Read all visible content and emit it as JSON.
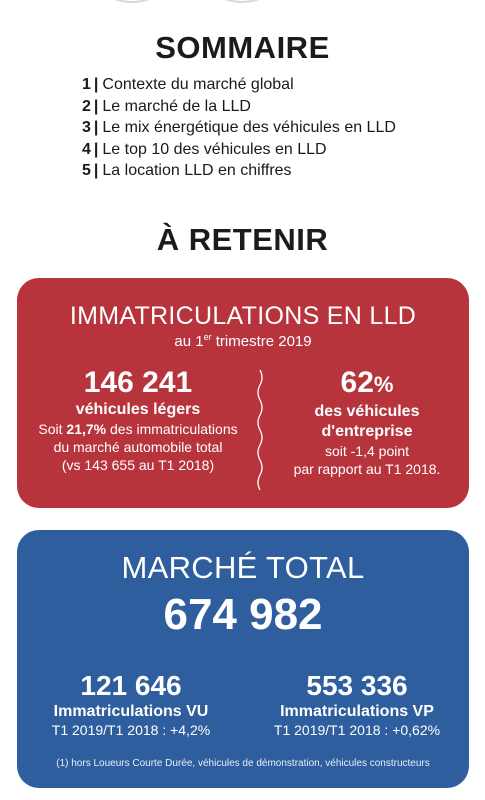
{
  "sommaire": {
    "title": "SOMMAIRE",
    "items": [
      {
        "num": "1",
        "label": "Contexte du marché global"
      },
      {
        "num": "2",
        "label": "Le marché de la LLD"
      },
      {
        "num": "3",
        "label": "Le mix énergétique des véhicules en LLD"
      },
      {
        "num": "4",
        "label": "Le top 10 des véhicules en LLD"
      },
      {
        "num": "5",
        "label": "La location LLD en chiffres"
      }
    ],
    "separator": "|"
  },
  "retenir": {
    "title": "À RETENIR"
  },
  "lld": {
    "title": "IMMATRICULATIONS EN LLD",
    "subtitle_prefix": "au 1",
    "subtitle_sup": "er",
    "subtitle_suffix": " trimestre 2019",
    "left": {
      "value": "146 241",
      "label": "véhicules légers",
      "line1_prefix": "Soit ",
      "line1_bold": "21,7%",
      "line1_suffix": " des immatriculations",
      "line2": "du marché automobile total",
      "line3": "(vs 143 655 au T1 2018)"
    },
    "right": {
      "value": "62",
      "unit": "%",
      "label1": "des véhicules",
      "label2": "d'entreprise",
      "line1": "soit -1,4 point",
      "line2": "par rapport au T1 2018."
    }
  },
  "total": {
    "title": "MARCHÉ TOTAL",
    "value": "674 982",
    "vu": {
      "value": "121 646",
      "label": "Immatriculations VU",
      "change": "T1 2019/T1 2018 : +4,2%"
    },
    "vp": {
      "value": "553 336",
      "label": "Immatriculations VP",
      "change": "T1 2019/T1 2018 : +0,62%"
    },
    "footnote": "(1) hors Loueurs Courte Durée, véhicules de démonstration, véhicules constructeurs"
  },
  "colors": {
    "red_card": "#b8343d",
    "blue_card": "#2f5e9f"
  }
}
